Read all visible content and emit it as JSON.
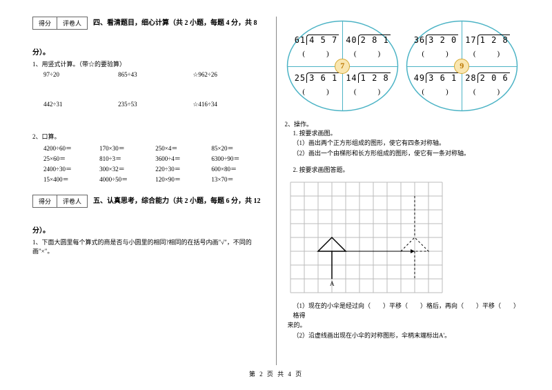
{
  "scoreBox": {
    "col1": "得分",
    "col2": "评卷人"
  },
  "section4": {
    "title": "四、看清题目，细心计算（共 2 小题，每题 4 分，共 8",
    "titleCont": "分）。",
    "sub1": "1、用竖式计算。（带☆的要验算）",
    "row1": [
      "97÷20",
      "865÷43",
      "☆962÷26"
    ],
    "row2": [
      "442÷31",
      "235÷53",
      "☆416÷34"
    ],
    "sub2": "2、口算。",
    "mental": [
      [
        "4200÷60＝",
        "170×30＝",
        "250×4＝",
        "85×20＝"
      ],
      [
        "25×60＝",
        "810÷3＝",
        "3600÷4＝",
        "6300÷90＝"
      ],
      [
        "2400÷30＝",
        "300×32＝",
        "220÷30＝",
        "600×80＝"
      ],
      [
        "15×400＝",
        "4000÷50＝",
        "120×90＝",
        "13×70＝"
      ]
    ]
  },
  "section5": {
    "title": "五、认真思考，综合能力（共 2 小题，每题 6 分，共 12",
    "titleCont": "分）。",
    "q1": "1、下面大圆里每个算式的商是否与小圆里的相同?相同的在括号内画\"√\"，不同的画\"×\"。"
  },
  "circles": [
    {
      "badge": "7",
      "tl": "61)4 5 7",
      "tr": "40)2 8 1",
      "bl": "25)3 6 1",
      "br": "14)1 2 8"
    },
    {
      "badge": "9",
      "tl": "36)3 2 0",
      "tr": "17)1 2 8",
      "bl": "49)3 6 1",
      "br": "28)2 0 6"
    }
  ],
  "operate": {
    "header": "2、操作。",
    "t1": "1. 按要求画图。",
    "t1a": "（1）画出两个正方形组成的图形，使它有四条对称轴。",
    "t1b": "（2）画出一个由梯形和长方形组成的图形，使它有一条对称轴。",
    "t2": "2. 按要求画图答题。",
    "q1a": "（1）现在的小伞是经过向（　　）平移（　　）格后，再向（　　）平移（　　）格得",
    "q1b": "来的。",
    "q2": "（2）沿虚线画出现在小伞的对称图形，伞柄末端标出A'。"
  },
  "footer": "第 2 页 共 4 页",
  "colors": {
    "circleStroke": "#4bb3c5",
    "badge_bg": "#f9e6b0",
    "badge_border": "#d4a830"
  },
  "gridStyle": {
    "size": 20,
    "cols": 11,
    "rows": 8,
    "stroke": "#bbb"
  },
  "paren": "(　　)"
}
